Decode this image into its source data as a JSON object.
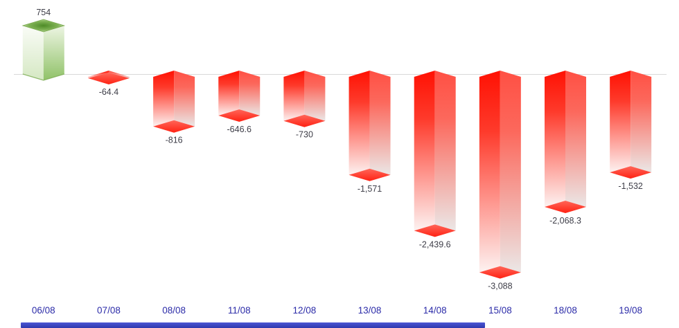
{
  "chart_data": {
    "type": "bar",
    "style": "3d-columns-with-diamond-caps",
    "title": "",
    "xlabel": "",
    "ylabel": "",
    "categories": [
      "06/08",
      "07/08",
      "08/08",
      "11/08",
      "12/08",
      "13/08",
      "14/08",
      "15/08",
      "18/08",
      "19/08"
    ],
    "values": [
      754,
      -64.4,
      -816,
      -646.6,
      -730,
      -1571,
      -2439.6,
      -3088,
      -2068.3,
      -1532
    ],
    "value_labels": [
      "754",
      "-64.4",
      "-816",
      "-646.6",
      "-730",
      "-1,571",
      "-2,439.6",
      "-3,088",
      "-2,068.3",
      "-1,532"
    ],
    "ylim": [
      -3300,
      800
    ],
    "grid": "off",
    "legend": "none",
    "zero_line": 0,
    "colors": {
      "positive_fill": "#6aa842",
      "positive_face_light": "#fafcf7",
      "positive_face_dark": "#90c268",
      "positive_cap_center": "#4e8b27",
      "positive_cap_edge": "#d8eac6",
      "negative_fill": "#ff2d1f",
      "negative_face_left_top": "#ff1103",
      "negative_face_left_bottom": "#fdf2f1",
      "negative_face_right_top": "#ff5044",
      "negative_face_right_bottom": "#ebe7e6",
      "negative_diamond": "#ff3527",
      "value_label": "#3e3e48",
      "category_label": "#2b2ba8",
      "zero_line": "#d8d8d8",
      "scrollbar": "#3f4ac8"
    }
  }
}
